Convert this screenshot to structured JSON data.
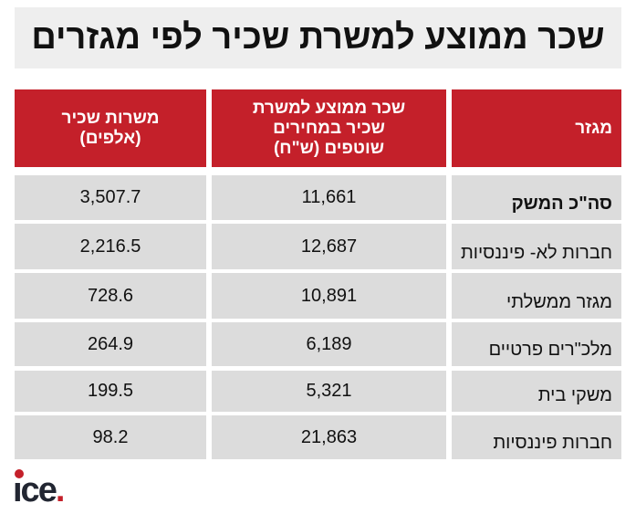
{
  "title": "שכר ממוצע למשרת שכיר לפי מגזרים",
  "headers": [
    "מגזר",
    "שכר ממוצע למשרת שכיר במחירים שוטפים (ש\"ח)",
    "משרות שכיר (אלפים)"
  ],
  "rows": [
    {
      "sector": "סה\"כ המשק",
      "wage": "11,661",
      "jobs": "3,507.7"
    },
    {
      "sector": "חברות לא- פיננסיות",
      "wage": "12,687",
      "jobs": "2,216.5"
    },
    {
      "sector": "מגזר ממשלתי",
      "wage": "10,891",
      "jobs": "728.6"
    },
    {
      "sector": "מלכ\"רים פרטיים",
      "wage": "6,189",
      "jobs": "264.9"
    },
    {
      "sector": "משקי בית",
      "wage": "5,321",
      "jobs": "199.5"
    },
    {
      "sector": "חברות פיננסיות",
      "wage": "21,863",
      "jobs": "98.2"
    }
  ],
  "logo": "ice"
}
